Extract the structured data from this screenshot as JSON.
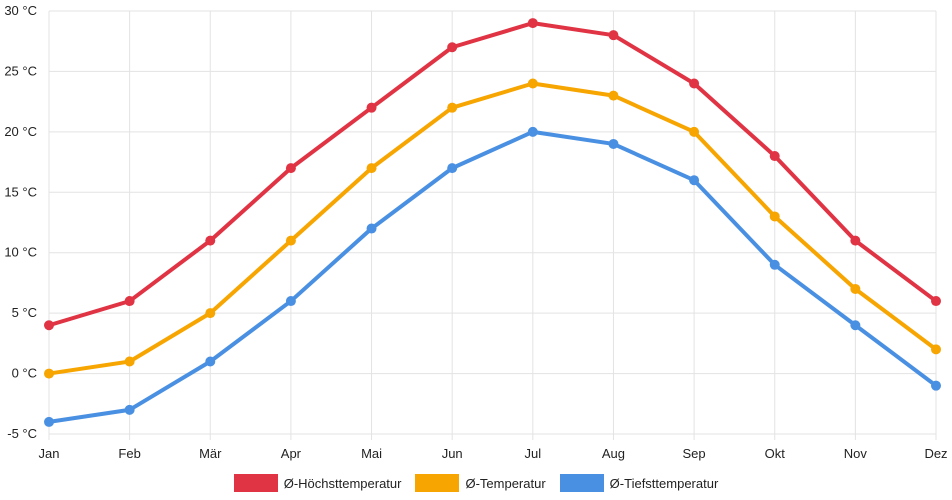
{
  "chart_data": {
    "type": "line",
    "categories": [
      "Jan",
      "Feb",
      "Mär",
      "Apr",
      "Mai",
      "Jun",
      "Jul",
      "Aug",
      "Sep",
      "Okt",
      "Nov",
      "Dez"
    ],
    "series": [
      {
        "name": "Ø-Höchsttemperatur",
        "color": "#e03444",
        "values": [
          4,
          6,
          11,
          17,
          22,
          27,
          29,
          28,
          24,
          18,
          11,
          6
        ]
      },
      {
        "name": "Ø-Temperatur",
        "color": "#f7a500",
        "values": [
          0,
          1,
          5,
          11,
          17,
          22,
          24,
          23,
          20,
          13,
          7,
          2
        ]
      },
      {
        "name": "Ø-Tiefsttemperatur",
        "color": "#4a90e2",
        "values": [
          -4,
          -3,
          1,
          6,
          12,
          17,
          20,
          19,
          16,
          9,
          4,
          -1
        ]
      }
    ],
    "yticks": [
      "-5 °C",
      "0 °C",
      "5 °C",
      "10 °C",
      "15 °C",
      "20 °C",
      "25 °C",
      "30 °C"
    ],
    "ylim": [
      -5,
      30
    ],
    "grid": true,
    "legend_position": "bottom",
    "title": "",
    "xlabel": "",
    "ylabel": ""
  }
}
